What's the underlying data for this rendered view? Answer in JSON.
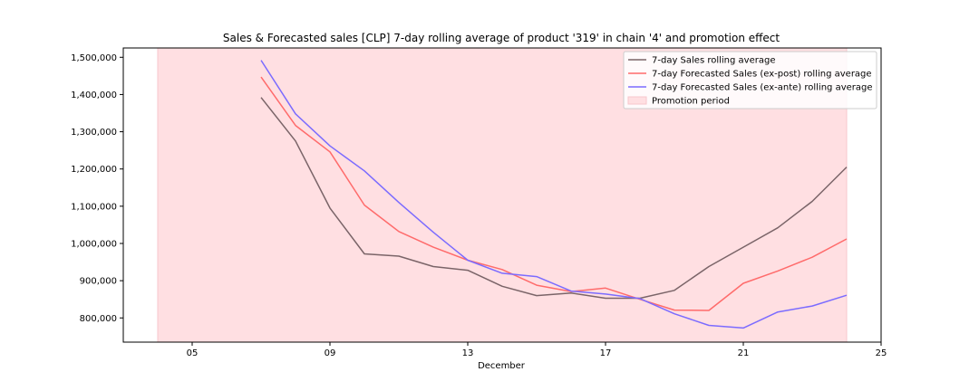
{
  "chart_data": {
    "type": "line",
    "title": "Sales & Forecasted sales [CLP] 7-day rolling average of product '319' in chain '4' and promotion effect",
    "xlabel": "December",
    "ylabel": "",
    "xlim": [
      3,
      25
    ],
    "ylim": [
      735000,
      1525000
    ],
    "x_ticks": [
      5,
      9,
      13,
      17,
      21,
      25
    ],
    "x_tick_labels": [
      "05",
      "09",
      "13",
      "17",
      "21",
      "25"
    ],
    "y_ticks": [
      800000,
      900000,
      1000000,
      1100000,
      1200000,
      1300000,
      1400000,
      1500000
    ],
    "y_tick_labels": [
      "800,000",
      "900,000",
      "1,000,000",
      "1,100,000",
      "1,200,000",
      "1,300,000",
      "1,400,000",
      "1,500,000"
    ],
    "grid": false,
    "legend_position": "top-right",
    "promotion_period": {
      "name": "Promotion period",
      "start": 4,
      "end": 24,
      "color": "#ffdfe2"
    },
    "x": [
      7,
      8,
      9,
      10,
      11,
      12,
      13,
      14,
      15,
      16,
      17,
      18,
      19,
      20,
      21,
      22,
      23,
      24
    ],
    "series": [
      {
        "name": "7-day Sales rolling average",
        "color": "#7a6468",
        "values": [
          1392000,
          1275000,
          1095000,
          972000,
          966000,
          938000,
          928000,
          885000,
          860000,
          867000,
          853000,
          853000,
          874000,
          938000,
          990000,
          1042000,
          1113000,
          1205000
        ]
      },
      {
        "name": "7-day Forecasted Sales (ex-post) rolling average",
        "color": "#ff6b6b",
        "values": [
          1447000,
          1317000,
          1246000,
          1103000,
          1032000,
          990000,
          955000,
          930000,
          888000,
          871000,
          880000,
          850000,
          821000,
          820000,
          893000,
          926000,
          963000,
          1012000
        ]
      },
      {
        "name": "7-day Forecasted Sales (ex-ante) rolling average",
        "color": "#7b6bff",
        "values": [
          1492000,
          1348000,
          1262000,
          1195000,
          1110000,
          1030000,
          955000,
          920000,
          911000,
          872000,
          864000,
          852000,
          811000,
          780000,
          773000,
          816000,
          832000,
          861000
        ]
      }
    ]
  }
}
